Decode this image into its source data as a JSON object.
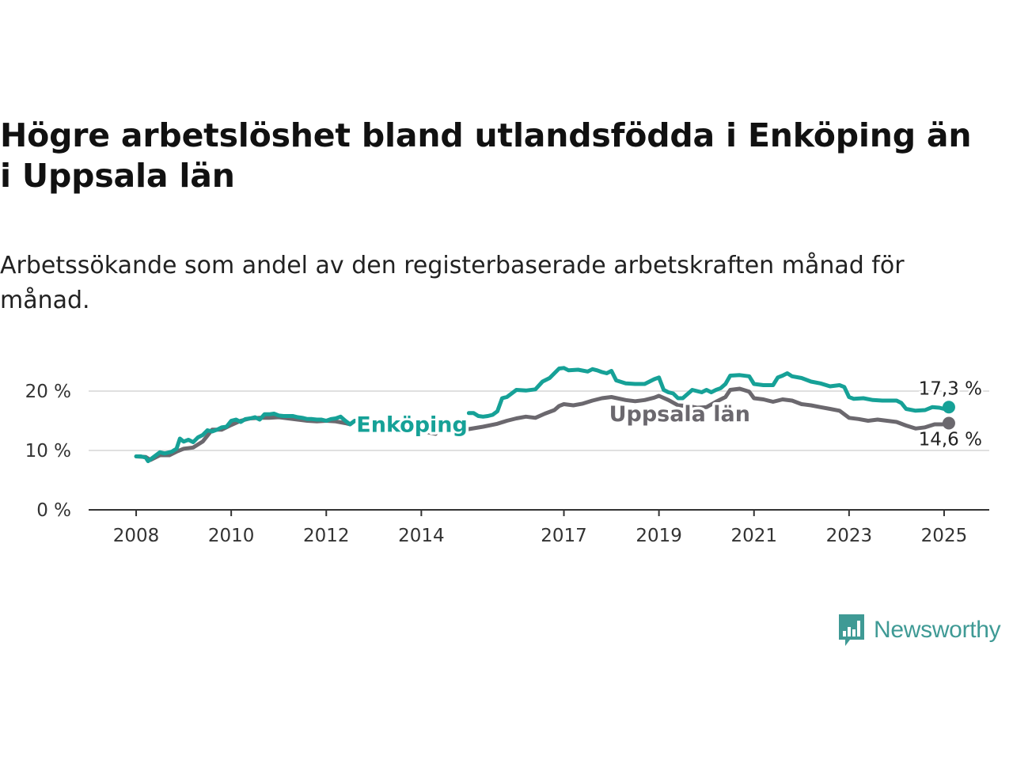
{
  "header": {
    "title": "Högre arbetslöshet bland utlandsfödda i Enköping än i Uppsala län",
    "subtitle": "Arbetssökande som andel av den registerbaserade arbetskraften månad för månad."
  },
  "brand": {
    "name": "Newsworthy",
    "color": "#3f9a95",
    "icon": "bar-chart-speech-bubble-icon"
  },
  "chart_data": {
    "type": "line",
    "x_unit": "year",
    "xlim": [
      2007.0,
      2025.95
    ],
    "ylim": [
      0,
      30
    ],
    "y_ticks": [
      0,
      10,
      20
    ],
    "y_tick_labels": [
      "0 %",
      "10 %",
      "20 %"
    ],
    "x_ticks": [
      2008,
      2010,
      2012,
      2014,
      2017,
      2019,
      2021,
      2023,
      2025
    ],
    "x_tick_labels": [
      "2008",
      "2010",
      "2012",
      "2014",
      "2017",
      "2019",
      "2021",
      "2023",
      "2025"
    ],
    "grid": "horizontal",
    "legend": "inline labels",
    "gap": [
      2012.5,
      2015.0
    ],
    "series": [
      {
        "name": "Enköping",
        "color": "#16a197",
        "end_label": "17,3 %",
        "points": [
          [
            2008.0,
            9.0
          ],
          [
            2008.1,
            9.0
          ],
          [
            2008.2,
            8.8
          ],
          [
            2008.25,
            8.2
          ],
          [
            2008.35,
            8.8
          ],
          [
            2008.5,
            9.7
          ],
          [
            2008.6,
            9.5
          ],
          [
            2008.75,
            9.8
          ],
          [
            2008.85,
            10.3
          ],
          [
            2008.92,
            12.0
          ],
          [
            2009.0,
            11.5
          ],
          [
            2009.1,
            11.8
          ],
          [
            2009.2,
            11.4
          ],
          [
            2009.3,
            12.2
          ],
          [
            2009.4,
            12.6
          ],
          [
            2009.5,
            13.4
          ],
          [
            2009.6,
            13.2
          ],
          [
            2009.7,
            13.5
          ],
          [
            2009.8,
            13.9
          ],
          [
            2009.9,
            14.0
          ],
          [
            2010.0,
            15.0
          ],
          [
            2010.1,
            15.2
          ],
          [
            2010.2,
            14.8
          ],
          [
            2010.3,
            15.3
          ],
          [
            2010.4,
            15.4
          ],
          [
            2010.5,
            15.6
          ],
          [
            2010.6,
            15.2
          ],
          [
            2010.7,
            16.1
          ],
          [
            2010.8,
            16.1
          ],
          [
            2010.9,
            16.2
          ],
          [
            2011.0,
            15.9
          ],
          [
            2011.1,
            15.8
          ],
          [
            2011.2,
            15.8
          ],
          [
            2011.3,
            15.8
          ],
          [
            2011.4,
            15.6
          ],
          [
            2011.5,
            15.5
          ],
          [
            2011.6,
            15.3
          ],
          [
            2011.7,
            15.3
          ],
          [
            2011.8,
            15.2
          ],
          [
            2011.9,
            15.2
          ],
          [
            2012.0,
            15.0
          ],
          [
            2012.1,
            15.3
          ],
          [
            2012.2,
            15.4
          ],
          [
            2012.3,
            15.7
          ],
          [
            2012.4,
            15.0
          ],
          [
            2012.5,
            14.4
          ],
          [
            2012.6,
            15.0
          ],
          [
            2015.0,
            16.3
          ],
          [
            2015.1,
            16.3
          ],
          [
            2015.2,
            15.8
          ],
          [
            2015.3,
            15.7
          ],
          [
            2015.4,
            15.8
          ],
          [
            2015.5,
            16.0
          ],
          [
            2015.6,
            16.6
          ],
          [
            2015.7,
            18.8
          ],
          [
            2015.8,
            19.0
          ],
          [
            2015.9,
            19.6
          ],
          [
            2016.0,
            20.2
          ],
          [
            2016.2,
            20.1
          ],
          [
            2016.4,
            20.3
          ],
          [
            2016.55,
            21.6
          ],
          [
            2016.7,
            22.2
          ],
          [
            2016.8,
            23.0
          ],
          [
            2016.9,
            23.8
          ],
          [
            2017.0,
            23.9
          ],
          [
            2017.1,
            23.5
          ],
          [
            2017.3,
            23.6
          ],
          [
            2017.5,
            23.3
          ],
          [
            2017.6,
            23.7
          ],
          [
            2017.7,
            23.5
          ],
          [
            2017.8,
            23.2
          ],
          [
            2017.9,
            23.0
          ],
          [
            2018.0,
            23.4
          ],
          [
            2018.1,
            21.8
          ],
          [
            2018.3,
            21.3
          ],
          [
            2018.5,
            21.2
          ],
          [
            2018.7,
            21.2
          ],
          [
            2018.9,
            22.0
          ],
          [
            2019.0,
            22.3
          ],
          [
            2019.1,
            20.2
          ],
          [
            2019.2,
            19.8
          ],
          [
            2019.3,
            19.6
          ],
          [
            2019.4,
            18.8
          ],
          [
            2019.5,
            18.8
          ],
          [
            2019.7,
            20.2
          ],
          [
            2019.9,
            19.8
          ],
          [
            2020.0,
            20.2
          ],
          [
            2020.1,
            19.8
          ],
          [
            2020.2,
            20.2
          ],
          [
            2020.3,
            20.5
          ],
          [
            2020.4,
            21.2
          ],
          [
            2020.5,
            22.6
          ],
          [
            2020.7,
            22.7
          ],
          [
            2020.9,
            22.5
          ],
          [
            2021.0,
            21.2
          ],
          [
            2021.2,
            21.0
          ],
          [
            2021.4,
            21.0
          ],
          [
            2021.5,
            22.3
          ],
          [
            2021.6,
            22.6
          ],
          [
            2021.7,
            23.0
          ],
          [
            2021.8,
            22.5
          ],
          [
            2022.0,
            22.2
          ],
          [
            2022.2,
            21.6
          ],
          [
            2022.4,
            21.3
          ],
          [
            2022.6,
            20.8
          ],
          [
            2022.8,
            21.0
          ],
          [
            2022.9,
            20.7
          ],
          [
            2023.0,
            19.0
          ],
          [
            2023.1,
            18.7
          ],
          [
            2023.3,
            18.8
          ],
          [
            2023.5,
            18.5
          ],
          [
            2023.7,
            18.4
          ],
          [
            2023.9,
            18.4
          ],
          [
            2024.0,
            18.4
          ],
          [
            2024.1,
            18.0
          ],
          [
            2024.2,
            17.0
          ],
          [
            2024.4,
            16.7
          ],
          [
            2024.6,
            16.8
          ],
          [
            2024.75,
            17.3
          ],
          [
            2024.9,
            17.2
          ],
          [
            2025.0,
            17.0
          ],
          [
            2025.1,
            17.3
          ]
        ]
      },
      {
        "name": "Uppsala län",
        "color": "#6b686e",
        "end_label": "14,6 %",
        "points": [
          [
            2008.0,
            9.0
          ],
          [
            2008.2,
            8.9
          ],
          [
            2008.3,
            8.4
          ],
          [
            2008.4,
            8.8
          ],
          [
            2008.5,
            9.2
          ],
          [
            2008.7,
            9.2
          ],
          [
            2008.85,
            9.8
          ],
          [
            2009.0,
            10.3
          ],
          [
            2009.2,
            10.5
          ],
          [
            2009.4,
            11.5
          ],
          [
            2009.6,
            13.5
          ],
          [
            2009.8,
            13.5
          ],
          [
            2010.0,
            14.3
          ],
          [
            2010.2,
            15.0
          ],
          [
            2010.4,
            15.4
          ],
          [
            2010.6,
            15.5
          ],
          [
            2010.8,
            15.5
          ],
          [
            2011.0,
            15.6
          ],
          [
            2011.2,
            15.4
          ],
          [
            2011.4,
            15.2
          ],
          [
            2011.6,
            15.0
          ],
          [
            2011.8,
            14.9
          ],
          [
            2012.0,
            15.0
          ],
          [
            2012.2,
            14.9
          ],
          [
            2012.4,
            14.6
          ],
          [
            2012.5,
            14.4
          ],
          [
            2012.6,
            15.0
          ],
          [
            2014.0,
            13.3
          ],
          [
            2014.3,
            12.8
          ],
          [
            2014.4,
            14.2
          ],
          [
            2014.5,
            13.5
          ],
          [
            2014.7,
            13.4
          ],
          [
            2015.0,
            13.6
          ],
          [
            2015.3,
            14.0
          ],
          [
            2015.6,
            14.5
          ],
          [
            2015.8,
            15.0
          ],
          [
            2016.0,
            15.4
          ],
          [
            2016.2,
            15.7
          ],
          [
            2016.4,
            15.5
          ],
          [
            2016.6,
            16.2
          ],
          [
            2016.8,
            16.8
          ],
          [
            2016.9,
            17.5
          ],
          [
            2017.0,
            17.8
          ],
          [
            2017.2,
            17.6
          ],
          [
            2017.4,
            17.9
          ],
          [
            2017.6,
            18.4
          ],
          [
            2017.8,
            18.8
          ],
          [
            2018.0,
            19.0
          ],
          [
            2018.3,
            18.5
          ],
          [
            2018.5,
            18.3
          ],
          [
            2018.7,
            18.5
          ],
          [
            2018.9,
            18.9
          ],
          [
            2019.0,
            19.2
          ],
          [
            2019.2,
            18.5
          ],
          [
            2019.4,
            17.6
          ],
          [
            2019.6,
            17.5
          ],
          [
            2019.8,
            17.2
          ],
          [
            2020.0,
            17.3
          ],
          [
            2020.2,
            18.2
          ],
          [
            2020.4,
            19.0
          ],
          [
            2020.5,
            20.2
          ],
          [
            2020.7,
            20.4
          ],
          [
            2020.9,
            19.9
          ],
          [
            2021.0,
            18.8
          ],
          [
            2021.2,
            18.6
          ],
          [
            2021.4,
            18.2
          ],
          [
            2021.6,
            18.6
          ],
          [
            2021.8,
            18.4
          ],
          [
            2022.0,
            17.8
          ],
          [
            2022.2,
            17.6
          ],
          [
            2022.4,
            17.3
          ],
          [
            2022.6,
            17.0
          ],
          [
            2022.8,
            16.7
          ],
          [
            2023.0,
            15.5
          ],
          [
            2023.2,
            15.3
          ],
          [
            2023.4,
            15.0
          ],
          [
            2023.6,
            15.2
          ],
          [
            2023.8,
            15.0
          ],
          [
            2024.0,
            14.8
          ],
          [
            2024.2,
            14.2
          ],
          [
            2024.4,
            13.7
          ],
          [
            2024.6,
            13.9
          ],
          [
            2024.8,
            14.4
          ],
          [
            2025.0,
            14.4
          ],
          [
            2025.1,
            14.6
          ]
        ]
      }
    ]
  }
}
